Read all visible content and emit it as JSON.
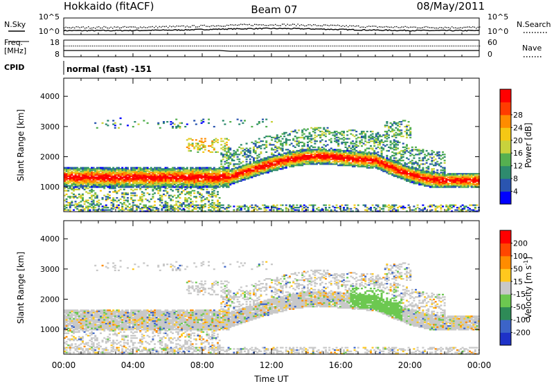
{
  "header": {
    "station": "Hokkaido (fitACF)",
    "beam": "Beam 07",
    "date": "08/May/2011"
  },
  "strip": {
    "nsky_label": "N.Sky",
    "nsearch_label": "N.Search",
    "freq_label_1": "Freq.",
    "freq_label_2": "[MHz]",
    "nave_label": "Nave",
    "cpid_label": "CPID",
    "cpid_value": "normal (fast) -151",
    "nsky_ticks": [
      "10^5",
      "10^0"
    ],
    "nsearch_ticks": [
      "10^5",
      "10^0"
    ],
    "freq_ticks": [
      "18",
      "8"
    ],
    "nave_ticks": [
      "60",
      "0"
    ]
  },
  "chart_data": [
    {
      "type": "heatmap",
      "quantity": "power",
      "ylabel": "Slant Range [km]",
      "xlabel": "",
      "x_ticks": [
        "00:00",
        "04:00",
        "08:00",
        "12:00",
        "16:00",
        "20:00",
        "00:00"
      ],
      "xlim_hours": [
        0,
        24
      ],
      "ylim": [
        180,
        4600
      ],
      "y_ticks": [
        1000,
        2000,
        3000,
        4000
      ],
      "colorbar_label": "Power [dB]",
      "colorbar_ticks": [
        "4",
        "8",
        "12",
        "16",
        "20",
        "24",
        "28"
      ],
      "colorbar_colors": [
        "#0000ff",
        "#2a55b0",
        "#2e8b6e",
        "#55b050",
        "#c8d23c",
        "#f5c814",
        "#ff8c00",
        "#ff3c00",
        "#ff0000"
      ]
    },
    {
      "type": "heatmap",
      "quantity": "velocity",
      "ylabel": "Slant Range [km]",
      "xlabel": "Time UT",
      "x_ticks": [
        "00:00",
        "04:00",
        "08:00",
        "12:00",
        "16:00",
        "20:00",
        "00:00"
      ],
      "xlim_hours": [
        0,
        24
      ],
      "ylim": [
        180,
        4600
      ],
      "y_ticks": [
        1000,
        2000,
        3000,
        4000
      ],
      "colorbar_label": "Velocity [m s^-1]",
      "colorbar_ticks": [
        "200",
        "100",
        "50",
        "15",
        "-15",
        "-50",
        "-100",
        "-200"
      ],
      "colorbar_colors": [
        "#1e32c8",
        "#3c64c8",
        "#2e8b57",
        "#6cc850",
        "#c8c8c8",
        "#ffc81e",
        "#ff8c00",
        "#ff4600",
        "#ff0000"
      ]
    }
  ]
}
